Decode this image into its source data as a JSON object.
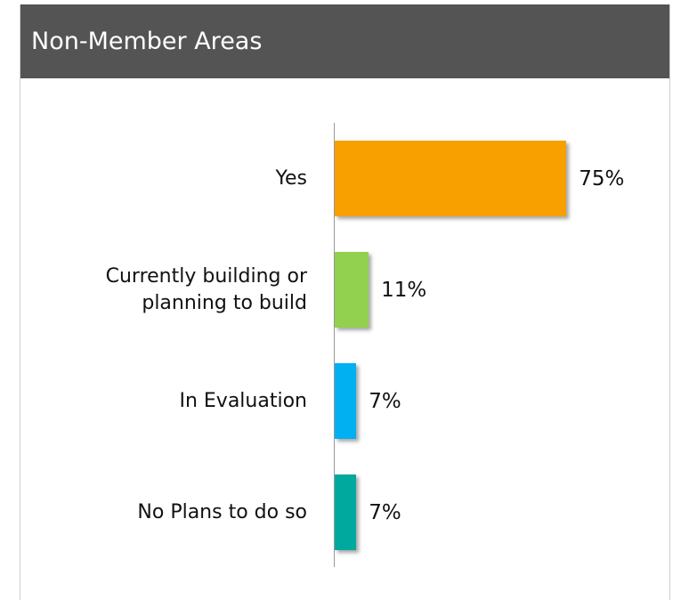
{
  "chart_data": {
    "type": "bar",
    "orientation": "horizontal",
    "title": "Non-Member Areas",
    "categories": [
      "Yes",
      "Currently building or planning to build",
      "In Evaluation",
      "No Plans to do so"
    ],
    "values": [
      75,
      11,
      7,
      7
    ],
    "value_labels": [
      "75%",
      "11%",
      "7%",
      "7%"
    ],
    "colors": [
      "#f7a000",
      "#92d050",
      "#00b0f0",
      "#00a99d"
    ]
  }
}
